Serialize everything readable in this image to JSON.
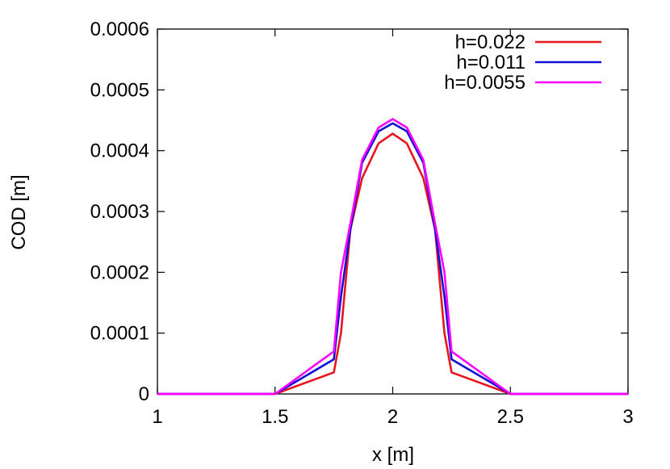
{
  "chart_data": {
    "type": "line",
    "title": "",
    "xlabel": "x [m]",
    "ylabel": "COD [m]",
    "xlim": [
      1,
      3
    ],
    "ylim": [
      0,
      0.0006
    ],
    "xticks": [
      1,
      1.5,
      2,
      2.5,
      3
    ],
    "xtick_labels": [
      "1",
      "1.5",
      "2",
      "2.5",
      "3"
    ],
    "yticks": [
      0,
      0.0001,
      0.0002,
      0.0003,
      0.0004,
      0.0005,
      0.0006
    ],
    "ytick_labels": [
      "0",
      "0.0001",
      "0.0002",
      "0.0003",
      "0.0004",
      "0.0005",
      "0.0006"
    ],
    "grid": false,
    "legend_position": "top-right",
    "series": [
      {
        "name": "h=0.022",
        "color": "#e8141b",
        "x": [
          1,
          1.5,
          1.75,
          1.78,
          1.82,
          1.87,
          1.94,
          2.0,
          2.06,
          2.13,
          2.18,
          2.22,
          2.25,
          2.5,
          3
        ],
        "y": [
          0,
          0,
          3.55e-05,
          0.0001,
          0.00027,
          0.000355,
          0.000412,
          0.000428,
          0.000412,
          0.000355,
          0.00027,
          0.0001,
          3.55e-05,
          0,
          0
        ]
      },
      {
        "name": "h=0.011",
        "color": "#1010d8",
        "x": [
          1,
          1.5,
          1.75,
          1.78,
          1.82,
          1.87,
          1.94,
          2.0,
          2.06,
          2.13,
          2.18,
          2.22,
          2.25,
          2.5,
          3
        ],
        "y": [
          0,
          0,
          5.7e-05,
          0.00016,
          0.00027,
          0.00038,
          0.000432,
          0.000445,
          0.000432,
          0.00038,
          0.00027,
          0.00016,
          5.7e-05,
          0,
          0
        ]
      },
      {
        "name": "h=0.0055",
        "color": "#ff00ff",
        "x": [
          1,
          1.5,
          1.75,
          1.78,
          1.82,
          1.87,
          1.94,
          2.0,
          2.06,
          2.13,
          2.18,
          2.22,
          2.25,
          2.5,
          3
        ],
        "y": [
          0,
          0,
          7e-05,
          0.0002,
          0.00028,
          0.000385,
          0.000438,
          0.000452,
          0.000438,
          0.000385,
          0.00028,
          0.0002,
          7e-05,
          0,
          0
        ]
      }
    ]
  }
}
